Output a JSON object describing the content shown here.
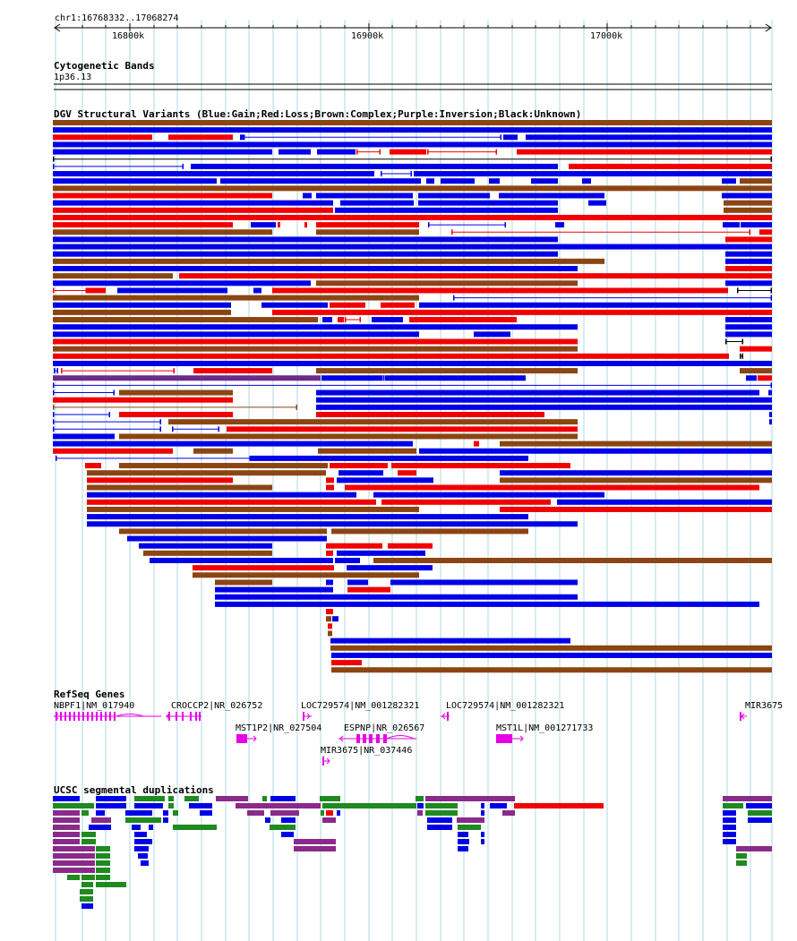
{
  "colors": {
    "gain": "#0000e6",
    "loss": "#f00000",
    "complex": "#8b4513",
    "inversion": "#6a2b8a",
    "unknown": "#000000",
    "gene": "#e600e6",
    "segdup_green": "#1f8a1f",
    "segdup_purple": "#8a2a8a",
    "segdup_blue": "#0000e6",
    "segdup_red": "#f00000",
    "gridline": "#add8e6"
  },
  "ruler": {
    "position": "chr1:16768332..17068274",
    "ticks": [
      {
        "label": "16800k",
        "value": 16800000
      },
      {
        "label": "16900k",
        "value": 16900000
      },
      {
        "label": "17000k",
        "value": 17000000
      }
    ]
  },
  "cytobands": {
    "title": "Cytogenetic Bands",
    "band": "1p36.13"
  },
  "dgv": {
    "title": "DGV Structural Variants (Blue:Gain;Red:Loss;Brown:Complex;Purple:Inversion;Black:Unknown)"
  },
  "refseq": {
    "title": "RefSeq Genes",
    "genes": [
      {
        "label": "NBPF1|NM_017940"
      },
      {
        "label": "CROCCP2|NR_026752"
      },
      {
        "label": "LOC729574|NM_001282321"
      },
      {
        "label": "LOC729574|NM_001282321"
      },
      {
        "label": "MIR3675"
      },
      {
        "label": "MST1P2|NR_027504"
      },
      {
        "label": "ESPNP|NR_026567"
      },
      {
        "label": "MST1L|NM_001271733"
      },
      {
        "label": "MIR3675|NR_037446"
      }
    ]
  },
  "segdups": {
    "title": "UCSC segmental duplications"
  }
}
